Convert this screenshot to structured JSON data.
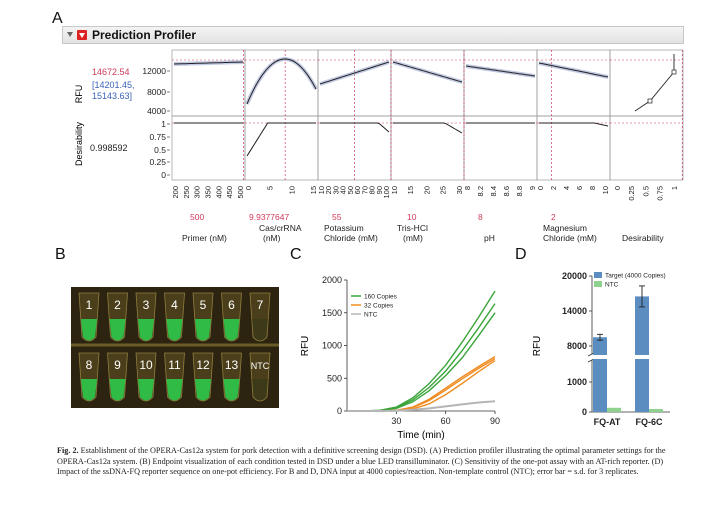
{
  "panels": {
    "a": "A",
    "b": "B",
    "c": "C",
    "d": "D"
  },
  "profiler": {
    "title": "Prediction Profiler",
    "rfu_label": "RFU",
    "desirability_label": "Desirability",
    "rfu_value": "14672.54",
    "rfu_ci_1": "[14201.45,",
    "rfu_ci_2": "15143.63]",
    "desirability_value": "0.998592",
    "y_ticks_rfu": [
      "12000",
      "8000",
      "4000"
    ],
    "y_ticks_des": [
      "1",
      "0.75",
      "0.5",
      "0.25",
      "0"
    ],
    "des_x_ticks": [
      "0",
      "0.25",
      "0.5",
      "0.75",
      "1"
    ],
    "factors": [
      {
        "name1": "",
        "name2": "Primer (nM)",
        "current": "500",
        "ticks": [
          "200",
          "250",
          "300",
          "350",
          "400",
          "450",
          "500"
        ]
      },
      {
        "name1": "Cas/crRNA",
        "name2": "(nM)",
        "current": "9.9377647",
        "ticks": [
          "0",
          "5",
          "10",
          "15"
        ]
      },
      {
        "name1": "Potassium",
        "name2": "Chloride (mM)",
        "current": "55",
        "ticks": [
          "10",
          "20",
          "30",
          "40",
          "50",
          "60",
          "70",
          "80",
          "90",
          "100"
        ]
      },
      {
        "name1": "Tris-HCl",
        "name2": "(mM)",
        "current": "10",
        "ticks": [
          "10",
          "15",
          "20",
          "25",
          "30"
        ]
      },
      {
        "name1": "",
        "name2": "pH",
        "current": "8",
        "ticks": [
          "8",
          "8.2",
          "8.4",
          "8.6",
          "8.8",
          "9"
        ]
      },
      {
        "name1": "Magnesium",
        "name2": "Chloride (mM)",
        "current": "2",
        "ticks": [
          "0",
          "2",
          "4",
          "6",
          "8",
          "10"
        ]
      }
    ],
    "desirability_axis_label": "Desirability"
  },
  "tubes": {
    "top": [
      "1",
      "2",
      "3",
      "4",
      "5",
      "6",
      "7"
    ],
    "bottom": [
      "8",
      "9",
      "10",
      "11",
      "12",
      "13",
      "NTC"
    ]
  },
  "chart_data": [
    {
      "type": "line",
      "panel": "C",
      "xlabel": "Time (min)",
      "ylabel": "RFU",
      "xlim": [
        0,
        90
      ],
      "ylim": [
        0,
        2000
      ],
      "x_ticks": [
        "30",
        "60",
        "90"
      ],
      "y_ticks": [
        "0",
        "500",
        "1000",
        "1500",
        "2000"
      ],
      "legend": [
        "160 Copies",
        "32 Copies",
        "NTC"
      ],
      "legend_position": "top-left",
      "series": [
        {
          "name": "160 Copies",
          "color": "#3aa43a",
          "x": [
            0,
            10,
            20,
            30,
            40,
            50,
            60,
            70,
            80,
            90
          ],
          "values": [
            0,
            0,
            10,
            60,
            200,
            420,
            700,
            1050,
            1430,
            1830
          ]
        },
        {
          "name": "160 Copies",
          "color": "#3aa43a",
          "x": [
            0,
            10,
            20,
            30,
            40,
            50,
            60,
            70,
            80,
            90
          ],
          "values": [
            0,
            0,
            8,
            50,
            170,
            360,
            610,
            920,
            1270,
            1640
          ]
        },
        {
          "name": "160 Copies",
          "color": "#3aa43a",
          "x": [
            0,
            10,
            20,
            30,
            40,
            50,
            60,
            70,
            80,
            90
          ],
          "values": [
            0,
            0,
            5,
            40,
            140,
            310,
            540,
            810,
            1150,
            1500
          ]
        },
        {
          "name": "32 Copies",
          "color": "#ef8c22",
          "x": [
            0,
            10,
            20,
            30,
            40,
            50,
            60,
            70,
            80,
            90
          ],
          "values": [
            0,
            0,
            0,
            10,
            60,
            180,
            350,
            520,
            680,
            830
          ]
        },
        {
          "name": "32 Copies",
          "color": "#ef8c22",
          "x": [
            0,
            10,
            20,
            30,
            40,
            50,
            60,
            70,
            80,
            90
          ],
          "values": [
            0,
            0,
            0,
            8,
            50,
            160,
            320,
            490,
            650,
            800
          ]
        },
        {
          "name": "32 Copies",
          "color": "#ef8c22",
          "x": [
            0,
            10,
            20,
            30,
            40,
            50,
            60,
            70,
            80,
            90
          ],
          "values": [
            0,
            0,
            0,
            5,
            30,
            110,
            250,
            420,
            600,
            770
          ]
        },
        {
          "name": "NTC",
          "color": "#b5b5b5",
          "x": [
            0,
            10,
            20,
            30,
            40,
            50,
            60,
            70,
            80,
            90
          ],
          "values": [
            0,
            0,
            0,
            5,
            20,
            40,
            70,
            100,
            130,
            150
          ]
        }
      ]
    },
    {
      "type": "bar",
      "panel": "D",
      "ylabel": "RFU",
      "categories": [
        "FQ-AT",
        "FQ-6C"
      ],
      "y_ticks": [
        "20000",
        "14000",
        "8000",
        "1000",
        "0"
      ],
      "legend": [
        "Target (4000 Copies)",
        "NTC"
      ],
      "legend_position": "top",
      "axis_break": true,
      "series": [
        {
          "name": "Target (4000 Copies)",
          "color": "#5b8dc1",
          "values": [
            9500,
            16500
          ],
          "errors": [
            500,
            1800
          ]
        },
        {
          "name": "NTC",
          "color": "#8fd18f",
          "values": [
            140,
            100
          ]
        }
      ]
    }
  ],
  "caption": {
    "bold": "Fig. 2.",
    "text": "Establishment of the OPERA-Cas12a system for pork detection with a definitive screening design (DSD). (A) Prediction profiler illustrating the optimal parameter settings for the OPERA-Cas12a system. (B) Endpoint visualization of each condition tested in DSD under a blue LED transilluminator. (C) Sensitivity of the one-pot assay with an AT-rich reporter. (D) Impact of the ssDNA-FQ reporter sequence on one-pot efficiency. For B and D, DNA input at 4000 copies/reaction. Non-template control (NTC); error bar = s.d. for 3 replicates."
  }
}
